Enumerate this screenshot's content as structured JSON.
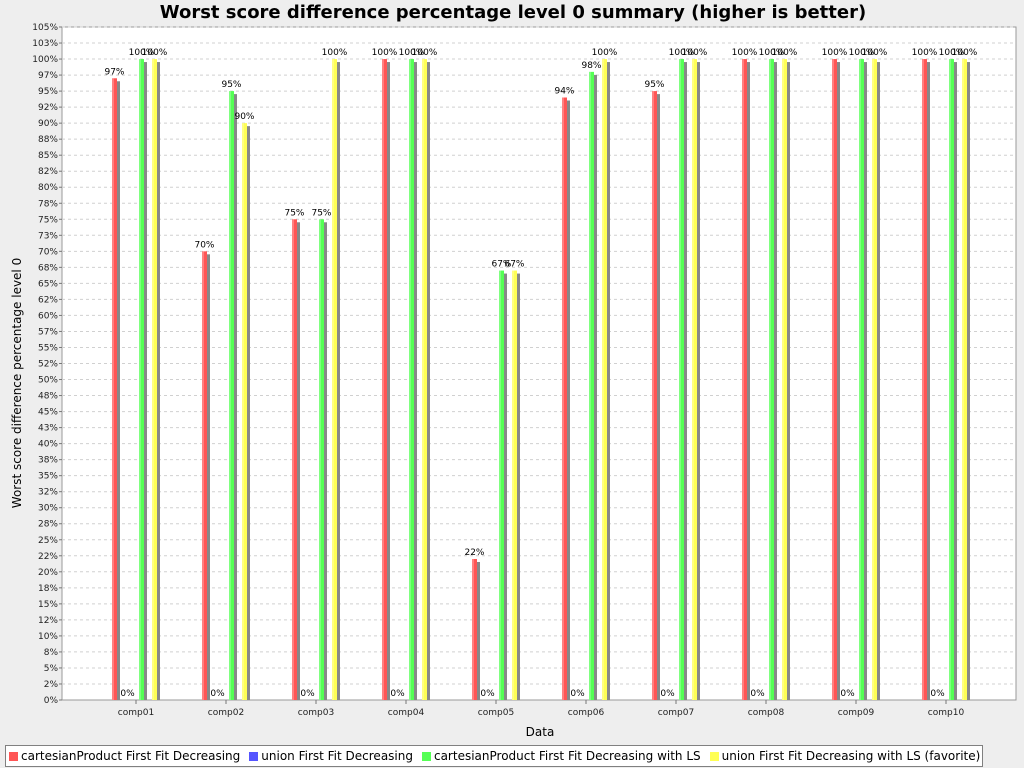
{
  "chart_data": {
    "type": "bar",
    "title": "Worst score difference percentage level 0 summary (higher is better)",
    "xlabel": "Data",
    "ylabel": "Worst score difference percentage level 0",
    "ylim": [
      0,
      105
    ],
    "yticks": [
      "0%",
      "2%",
      "5%",
      "8%",
      "10%",
      "12%",
      "15%",
      "18%",
      "20%",
      "22%",
      "25%",
      "28%",
      "30%",
      "32%",
      "35%",
      "38%",
      "40%",
      "43%",
      "45%",
      "48%",
      "50%",
      "52%",
      "55%",
      "57%",
      "60%",
      "62%",
      "65%",
      "68%",
      "70%",
      "73%",
      "75%",
      "78%",
      "80%",
      "82%",
      "85%",
      "88%",
      "90%",
      "92%",
      "95%",
      "97%",
      "100%",
      "103%",
      "105%"
    ],
    "categories": [
      "comp01",
      "comp02",
      "comp03",
      "comp04",
      "comp05",
      "comp06",
      "comp07",
      "comp08",
      "comp09",
      "comp10"
    ],
    "grid": true,
    "legend_position": "bottom",
    "series": [
      {
        "name": "cartesianProduct First Fit Decreasing",
        "color": "#ff5555",
        "values": [
          97,
          70,
          75,
          100,
          22,
          94,
          95,
          100,
          100,
          100
        ],
        "labels": [
          "97%",
          "70%",
          "75%",
          "100%",
          "22%",
          "94%",
          "95%",
          "100%",
          "100%",
          "100%"
        ]
      },
      {
        "name": "union First Fit Decreasing",
        "color": "#5555ff",
        "values": [
          0,
          0,
          0,
          0,
          0,
          0,
          0,
          0,
          0,
          0
        ],
        "labels": [
          "0%",
          "0%",
          "0%",
          "0%",
          "0%",
          "0%",
          "0%",
          "0%",
          "0%",
          "0%"
        ]
      },
      {
        "name": "cartesianProduct First Fit Decreasing with LS",
        "color": "#55ff55",
        "values": [
          100,
          95,
          75,
          100,
          67,
          98,
          100,
          100,
          100,
          100
        ],
        "labels": [
          "100%",
          "95%",
          "75%",
          "100%",
          "67%",
          "98%",
          "100%",
          "100%",
          "100%",
          "100%"
        ]
      },
      {
        "name": "union First Fit Decreasing with LS (favorite)",
        "color": "#ffff55",
        "values": [
          100,
          90,
          100,
          100,
          67,
          100,
          100,
          100,
          100,
          100
        ],
        "labels": [
          "100%",
          "90%",
          "100%",
          "100%",
          "67%",
          "100%",
          "100%",
          "100%",
          "100%",
          "100%"
        ]
      }
    ]
  }
}
